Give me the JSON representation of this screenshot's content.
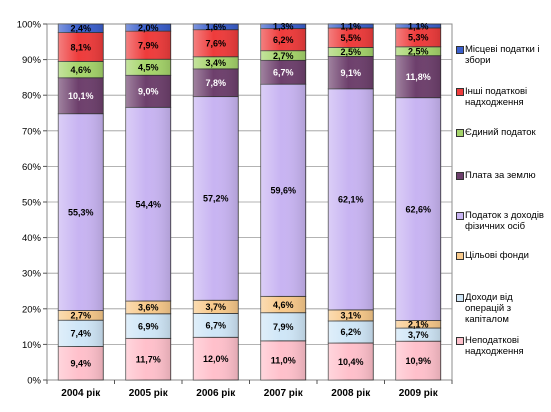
{
  "chart_data": {
    "type": "stacked-bar-100",
    "categories": [
      "2004 рік",
      "2005 рік",
      "2006 рік",
      "2007 рік",
      "2008 рік",
      "2009 рік"
    ],
    "ylim": [
      0,
      100
    ],
    "y_ticks": [
      "0%",
      "10%",
      "20%",
      "30%",
      "40%",
      "50%",
      "60%",
      "70%",
      "80%",
      "90%",
      "100%"
    ],
    "grid": true,
    "legend_position": "right",
    "series": [
      {
        "name": "Неподаткові надходження",
        "color": "#ffc0cb",
        "values": [
          9.4,
          11.7,
          12.0,
          11.0,
          10.4,
          10.9
        ],
        "labels": [
          "9,4%",
          "11,7%",
          "12,0%",
          "11,0%",
          "10,4%",
          "10,9%"
        ]
      },
      {
        "name": "Доходи від операцій з капіталом",
        "color": "#cfe6f7",
        "values": [
          7.4,
          6.9,
          6.7,
          7.9,
          6.2,
          3.7
        ],
        "labels": [
          "7,4%",
          "6,9%",
          "6,7%",
          "7,9%",
          "6,2%",
          "3,7%"
        ]
      },
      {
        "name": "Цільові фонди",
        "color": "#f8c98a",
        "values": [
          2.7,
          3.6,
          3.7,
          4.6,
          3.1,
          2.1
        ],
        "labels": [
          "2,7%",
          "3,6%",
          "3,7%",
          "4,6%",
          "3,1%",
          "2,1%"
        ]
      },
      {
        "name": "Податок з доходів фізичних осіб",
        "color": "#c8b4f2",
        "values": [
          55.3,
          54.4,
          57.2,
          59.6,
          62.1,
          62.6
        ],
        "labels": [
          "55,3%",
          "54,4%",
          "57,2%",
          "59,6%",
          "62,1%",
          "62,6%"
        ]
      },
      {
        "name": "Плата за землю",
        "color": "#6d3f6c",
        "values": [
          10.1,
          9.0,
          7.8,
          6.7,
          9.1,
          11.8
        ],
        "labels": [
          "10,1%",
          "9,0%",
          "7,8%",
          "6,7%",
          "9,1%",
          "11,8%"
        ]
      },
      {
        "name": "Єдиний податок",
        "color": "#a5d46a",
        "values": [
          4.6,
          4.5,
          3.4,
          2.7,
          2.5,
          2.5
        ],
        "labels": [
          "4,6%",
          "4,5%",
          "3,4%",
          "2,7%",
          "2,5%",
          "2,5%"
        ]
      },
      {
        "name": "Інші податкові надходження",
        "color": "#ee3b3b",
        "values": [
          8.1,
          7.9,
          7.6,
          6.2,
          5.5,
          5.3
        ],
        "labels": [
          "8,1%",
          "7,9%",
          "7,6%",
          "6,2%",
          "5,5%",
          "5,3%"
        ]
      },
      {
        "name": "Місцеві податки і збори",
        "color": "#3a5fcd",
        "values": [
          2.4,
          2.0,
          1.6,
          1.3,
          1.1,
          1.1
        ],
        "labels": [
          "2,4%",
          "2,0%",
          "1,6%",
          "1,3%",
          "1,1%",
          "1,1%"
        ]
      }
    ],
    "legend_order": [
      {
        "name": "Місцеві податки і збори",
        "color": "#3a5fcd"
      },
      {
        "name": "Інші податкові надходження",
        "color": "#ee3b3b"
      },
      {
        "name": "Єдиний податок",
        "color": "#a5d46a"
      },
      {
        "name": "Плата за землю",
        "color": "#6d3f6c"
      },
      {
        "name": "Податок з доходів фізичних осіб",
        "color": "#c8b4f2"
      },
      {
        "name": "Цільові фонди",
        "color": "#f8c98a"
      },
      {
        "name": "Доходи від операцій з капіталом",
        "color": "#cfe6f7"
      },
      {
        "name": "Неподаткові надходження",
        "color": "#ffc0cb"
      }
    ]
  }
}
